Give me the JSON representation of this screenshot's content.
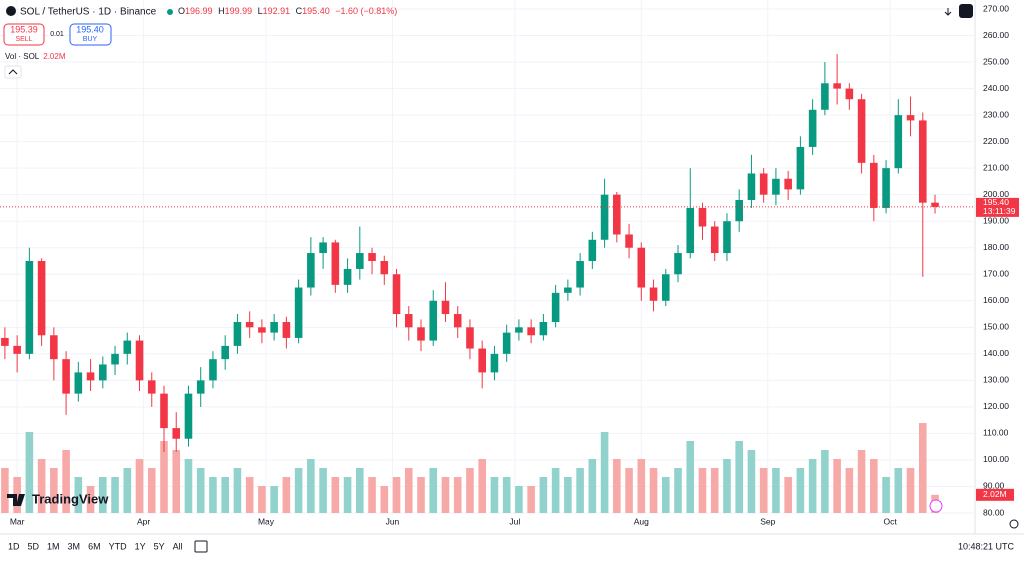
{
  "header": {
    "symbol": "SOL / TetherUS · 1D · Binance",
    "ohlc": [
      {
        "key": "O",
        "value": "196.99"
      },
      {
        "key": "H",
        "value": "199.99"
      },
      {
        "key": "L",
        "value": "192.91"
      },
      {
        "key": "C",
        "value": "195.40"
      }
    ],
    "change": "−1.60 (−0.81%)",
    "sell": {
      "price": "195.39",
      "label": "SELL"
    },
    "spread": "0.01",
    "buy": {
      "price": "195.40",
      "label": "BUY"
    }
  },
  "brand": "TradingView",
  "toolbar": {
    "ranges": [
      "1D",
      "5D",
      "1M",
      "3M",
      "6M",
      "YTD",
      "1Y",
      "5Y",
      "All"
    ],
    "clock": "10:48:21 UTC"
  },
  "chart_data": {
    "type": "candlestick",
    "title": "SOL / TetherUS · 1D · Binance",
    "x": [
      -3,
      0,
      3,
      6,
      9,
      12,
      15,
      18,
      21,
      24,
      27,
      30,
      33,
      36,
      39,
      42,
      45,
      48,
      51,
      54,
      57,
      60,
      63,
      66,
      69,
      72,
      75,
      78,
      81,
      84,
      87,
      90,
      93,
      96,
      99,
      102,
      105,
      108,
      111,
      114,
      117,
      120,
      123,
      126,
      129,
      132,
      135,
      138,
      141,
      144,
      147,
      150,
      153,
      156,
      159,
      162,
      165,
      168,
      171,
      174,
      177,
      180,
      183,
      186,
      189,
      192,
      195,
      198,
      201,
      204,
      207,
      210,
      213,
      216,
      219,
      222,
      225
    ],
    "open": [
      146,
      143,
      140,
      175,
      147,
      138,
      125,
      133,
      130,
      136,
      140,
      145,
      130,
      125,
      112,
      108,
      125,
      130,
      138,
      143,
      152,
      150,
      148,
      152,
      146,
      165,
      178,
      182,
      166,
      172,
      178,
      175,
      170,
      155,
      150,
      145,
      160,
      155,
      150,
      142,
      133,
      140,
      148,
      150,
      147,
      152,
      163,
      165,
      175,
      183,
      200,
      185,
      180,
      165,
      160,
      170,
      178,
      195,
      188,
      178,
      190,
      198,
      208,
      200,
      206,
      202,
      218,
      232,
      242,
      240,
      236,
      212,
      195,
      210,
      230,
      228,
      196.99
    ],
    "high": [
      150,
      147,
      180,
      176,
      150,
      141,
      137,
      138,
      139,
      143,
      148,
      147,
      133,
      128,
      118,
      128,
      135,
      141,
      147,
      155,
      156,
      153,
      155,
      154,
      168,
      184,
      184,
      183,
      176,
      188,
      180,
      177,
      172,
      158,
      153,
      164,
      167,
      158,
      153,
      145,
      143,
      151,
      153,
      153,
      155,
      166,
      168,
      178,
      186,
      206,
      201,
      189,
      182,
      168,
      172,
      181,
      210,
      197,
      190,
      193,
      202,
      215,
      210,
      210,
      209,
      222,
      236,
      250,
      253,
      242,
      238,
      215,
      213,
      236,
      237,
      231,
      199.99
    ],
    "low": [
      138,
      133,
      138,
      143,
      130,
      117,
      122,
      126,
      127,
      132,
      136,
      126,
      120,
      103,
      103,
      105,
      120,
      127,
      134,
      140,
      146,
      144,
      145,
      142,
      144,
      162,
      172,
      163,
      163,
      168,
      170,
      166,
      150,
      145,
      141,
      143,
      152,
      146,
      138,
      127,
      130,
      137,
      145,
      144,
      145,
      150,
      160,
      162,
      172,
      180,
      182,
      176,
      160,
      156,
      158,
      167,
      176,
      183,
      175,
      175,
      186,
      195,
      197,
      196,
      198,
      200,
      215,
      230,
      234,
      232,
      208,
      190,
      193,
      208,
      222,
      169,
      192.91
    ],
    "close": [
      143,
      140,
      175,
      147,
      138,
      125,
      133,
      130,
      136,
      140,
      145,
      130,
      125,
      112,
      108,
      125,
      130,
      138,
      143,
      152,
      150,
      148,
      152,
      146,
      165,
      178,
      182,
      166,
      172,
      178,
      175,
      170,
      155,
      150,
      145,
      160,
      155,
      150,
      142,
      133,
      140,
      148,
      150,
      147,
      152,
      163,
      165,
      175,
      183,
      200,
      185,
      180,
      165,
      160,
      170,
      178,
      195,
      188,
      178,
      190,
      198,
      208,
      200,
      206,
      202,
      218,
      232,
      242,
      240,
      236,
      212,
      195,
      210,
      230,
      228,
      196.99,
      195.4
    ],
    "volume": [
      5,
      4,
      9,
      6,
      5,
      7,
      4,
      3,
      4,
      4,
      5,
      6,
      5,
      8,
      7,
      6,
      5,
      4,
      4,
      5,
      4,
      3,
      3,
      4,
      5,
      6,
      5,
      4,
      4,
      5,
      4,
      3,
      4,
      5,
      4,
      5,
      4,
      4,
      5,
      6,
      4,
      4,
      3,
      3,
      4,
      5,
      4,
      5,
      6,
      9,
      6,
      5,
      6,
      5,
      4,
      5,
      8,
      5,
      5,
      6,
      8,
      7,
      5,
      5,
      4,
      5,
      6,
      7,
      6,
      5,
      7,
      6,
      4,
      5,
      5,
      10,
      2.02
    ],
    "volume_name": "Vol · SOL",
    "volume_label": "2.02M",
    "price_label": "195.40",
    "countdown": "13:11:39",
    "up_color": "#089981",
    "down_color": "#f23645",
    "volume_up_color": "#92d2cc",
    "volume_down_color": "#f7a9a7",
    "grid": true,
    "xlim": [
      -4.2,
      234.8
    ],
    "xticks": [
      {
        "value": 0,
        "label": "Mar"
      },
      {
        "value": 31,
        "label": "Apr"
      },
      {
        "value": 61,
        "label": "May"
      },
      {
        "value": 92,
        "label": "Jun"
      },
      {
        "value": 122,
        "label": "Jul"
      },
      {
        "value": 153,
        "label": "Aug"
      },
      {
        "value": 184,
        "label": "Sep"
      },
      {
        "value": 214,
        "label": "Oct"
      }
    ],
    "ylim": [
      80,
      270
    ],
    "yticks": [
      {
        "value": 80,
        "label": "80.00"
      },
      {
        "value": 90,
        "label": "90.00"
      },
      {
        "value": 100,
        "label": "100.00"
      },
      {
        "value": 110,
        "label": "110.00"
      },
      {
        "value": 120,
        "label": "120.00"
      },
      {
        "value": 130,
        "label": "130.00"
      },
      {
        "value": 140,
        "label": "140.00"
      },
      {
        "value": 150,
        "label": "150.00"
      },
      {
        "value": 160,
        "label": "160.00"
      },
      {
        "value": 170,
        "label": "170.00"
      },
      {
        "value": 180,
        "label": "180.00"
      },
      {
        "value": 190,
        "label": "190.00"
      },
      {
        "value": 200,
        "label": "200.00"
      },
      {
        "value": 210,
        "label": "210.00"
      },
      {
        "value": 220,
        "label": "220.00"
      },
      {
        "value": 230,
        "label": "230.00"
      },
      {
        "value": 240,
        "label": "240.00"
      },
      {
        "value": 250,
        "label": "250.00"
      },
      {
        "value": 260,
        "label": "260.00"
      },
      {
        "value": 270,
        "label": "270.00"
      }
    ]
  }
}
